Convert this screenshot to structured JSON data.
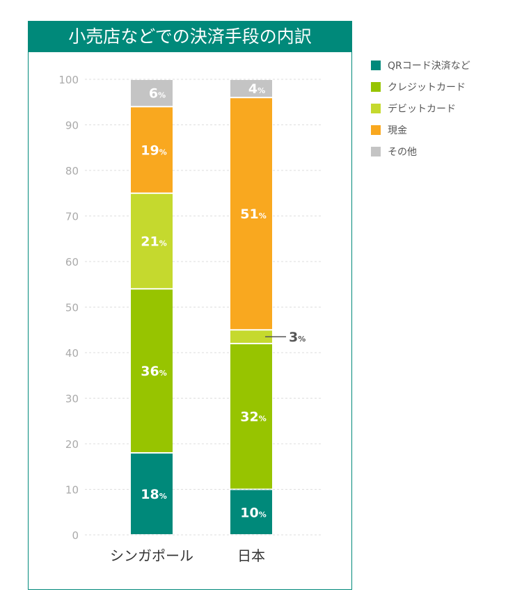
{
  "chart_data": {
    "type": "bar",
    "stacked": true,
    "title": "小売店などでの決済手段の内訳",
    "categories": [
      "シンガポール",
      "日本"
    ],
    "ylim": [
      0,
      100
    ],
    "yticks": [
      0,
      10,
      20,
      30,
      40,
      50,
      60,
      70,
      80,
      90,
      100
    ],
    "grid": true,
    "legend_position": "right",
    "series": [
      {
        "name": "QRコード決済など",
        "color": "#00897a",
        "values": [
          18,
          10
        ]
      },
      {
        "name": "クレジットカード",
        "color": "#97c400",
        "values": [
          36,
          32
        ]
      },
      {
        "name": "デビットカード",
        "color": "#c5d92e",
        "values": [
          21,
          3
        ]
      },
      {
        "name": "現金",
        "color": "#f9a81f",
        "values": [
          19,
          51
        ]
      },
      {
        "name": "その他",
        "color": "#c4c4c4",
        "values": [
          6,
          4
        ]
      }
    ],
    "unit": "%"
  }
}
